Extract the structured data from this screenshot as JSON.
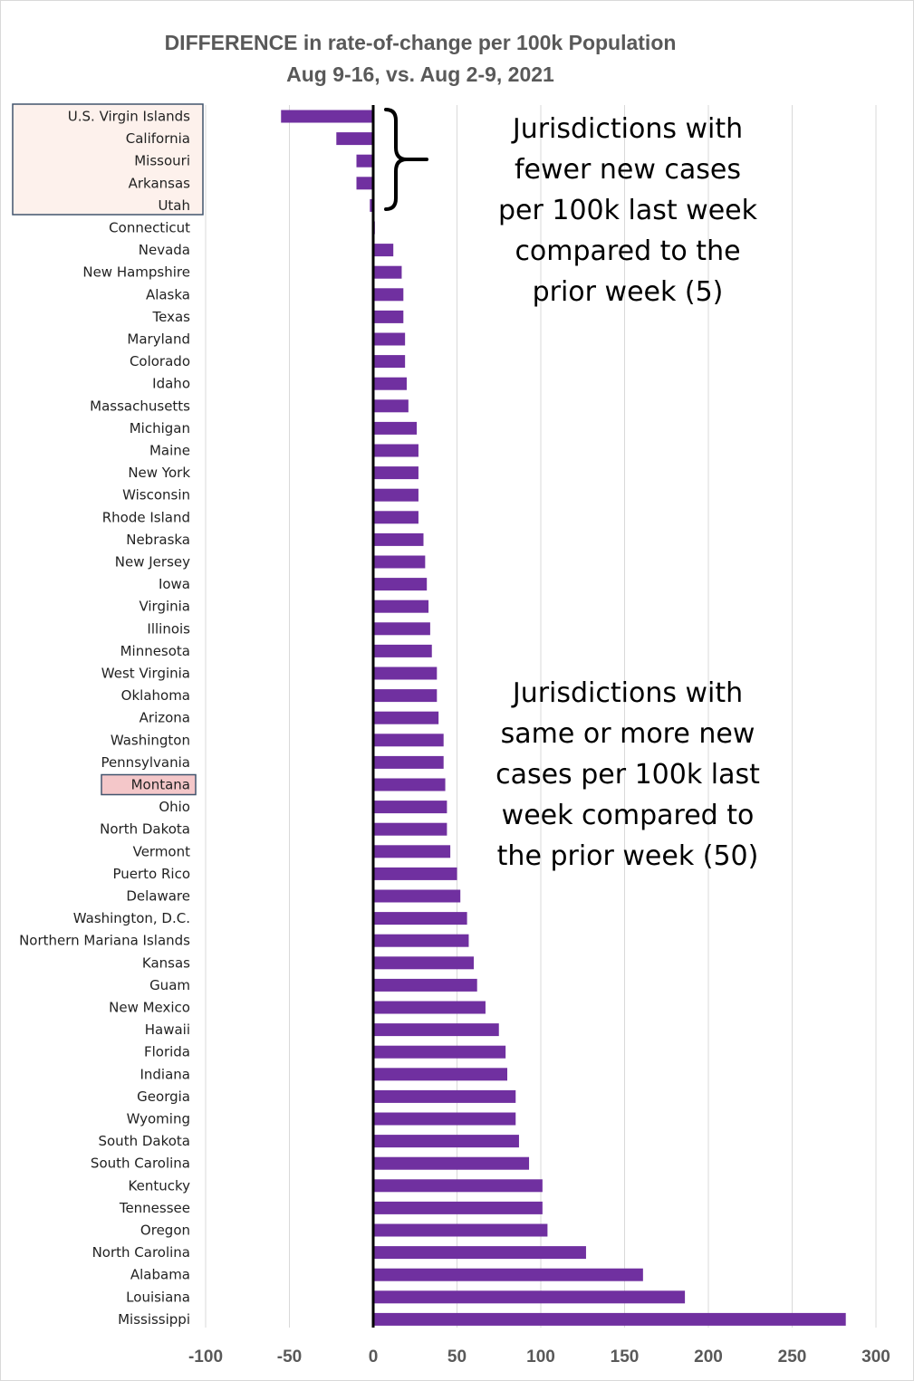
{
  "chart_data": {
    "type": "bar",
    "orientation": "horizontal",
    "title": "DIFFERENCE in rate-of-change per 100k Population",
    "subtitle": "Aug 9-16, vs. Aug 2-9, 2021",
    "xlim": [
      -100,
      300
    ],
    "xticks": [
      -100,
      -50,
      0,
      50,
      100,
      150,
      200,
      250,
      300
    ],
    "grid": "vertical",
    "bar_color": "#7030a0",
    "categories": [
      "U.S. Virgin Islands",
      "California",
      "Missouri",
      "Arkansas",
      "Utah",
      "Connecticut",
      "Nevada",
      "New Hampshire",
      "Alaska",
      "Texas",
      "Maryland",
      "Colorado",
      "Idaho",
      "Massachusetts",
      "Michigan",
      "Maine",
      "New York",
      "Wisconsin",
      "Rhode Island",
      "Nebraska",
      "New Jersey",
      "Iowa",
      "Virginia",
      "Illinois",
      "Minnesota",
      "West Virginia",
      "Oklahoma",
      "Arizona",
      "Washington",
      "Pennsylvania",
      "Montana",
      "Ohio",
      "North Dakota",
      "Vermont",
      "Puerto Rico",
      "Delaware",
      "Washington, D.C.",
      "Northern Mariana Islands",
      "Kansas",
      "Guam",
      "New Mexico",
      "Hawaii",
      "Florida",
      "Indiana",
      "Georgia",
      "Wyoming",
      "South Dakota",
      "South Carolina",
      "Kentucky",
      "Tennessee",
      "Oregon",
      "North Carolina",
      "Alabama",
      "Louisiana",
      "Mississippi"
    ],
    "values": [
      -55,
      -22,
      -10,
      -10,
      -2,
      1,
      12,
      17,
      18,
      18,
      19,
      19,
      20,
      21,
      26,
      27,
      27,
      27,
      27,
      30,
      31,
      32,
      33,
      34,
      35,
      38,
      38,
      39,
      42,
      42,
      43,
      44,
      44,
      46,
      50,
      52,
      56,
      57,
      60,
      62,
      67,
      75,
      79,
      80,
      85,
      85,
      87,
      93,
      101,
      101,
      104,
      127,
      161,
      186,
      282
    ],
    "highlight_group": {
      "categories": [
        "U.S. Virgin Islands",
        "California",
        "Missouri",
        "Arkansas",
        "Utah"
      ],
      "fill": "#fdf1ec",
      "stroke": "#41546d"
    },
    "highlight_single": {
      "category": "Montana",
      "fill": "#f4c7c9",
      "stroke": "#41546d"
    },
    "annotations": [
      {
        "id": "fewer",
        "lines": [
          "Jurisdictions with",
          "fewer new cases",
          "per 100k last week",
          "compared to the",
          "prior week (5)"
        ]
      },
      {
        "id": "more",
        "lines": [
          "Jurisdictions with",
          "same or more new",
          "cases per 100k last",
          "week compared to",
          "the prior week (50)"
        ]
      }
    ]
  }
}
